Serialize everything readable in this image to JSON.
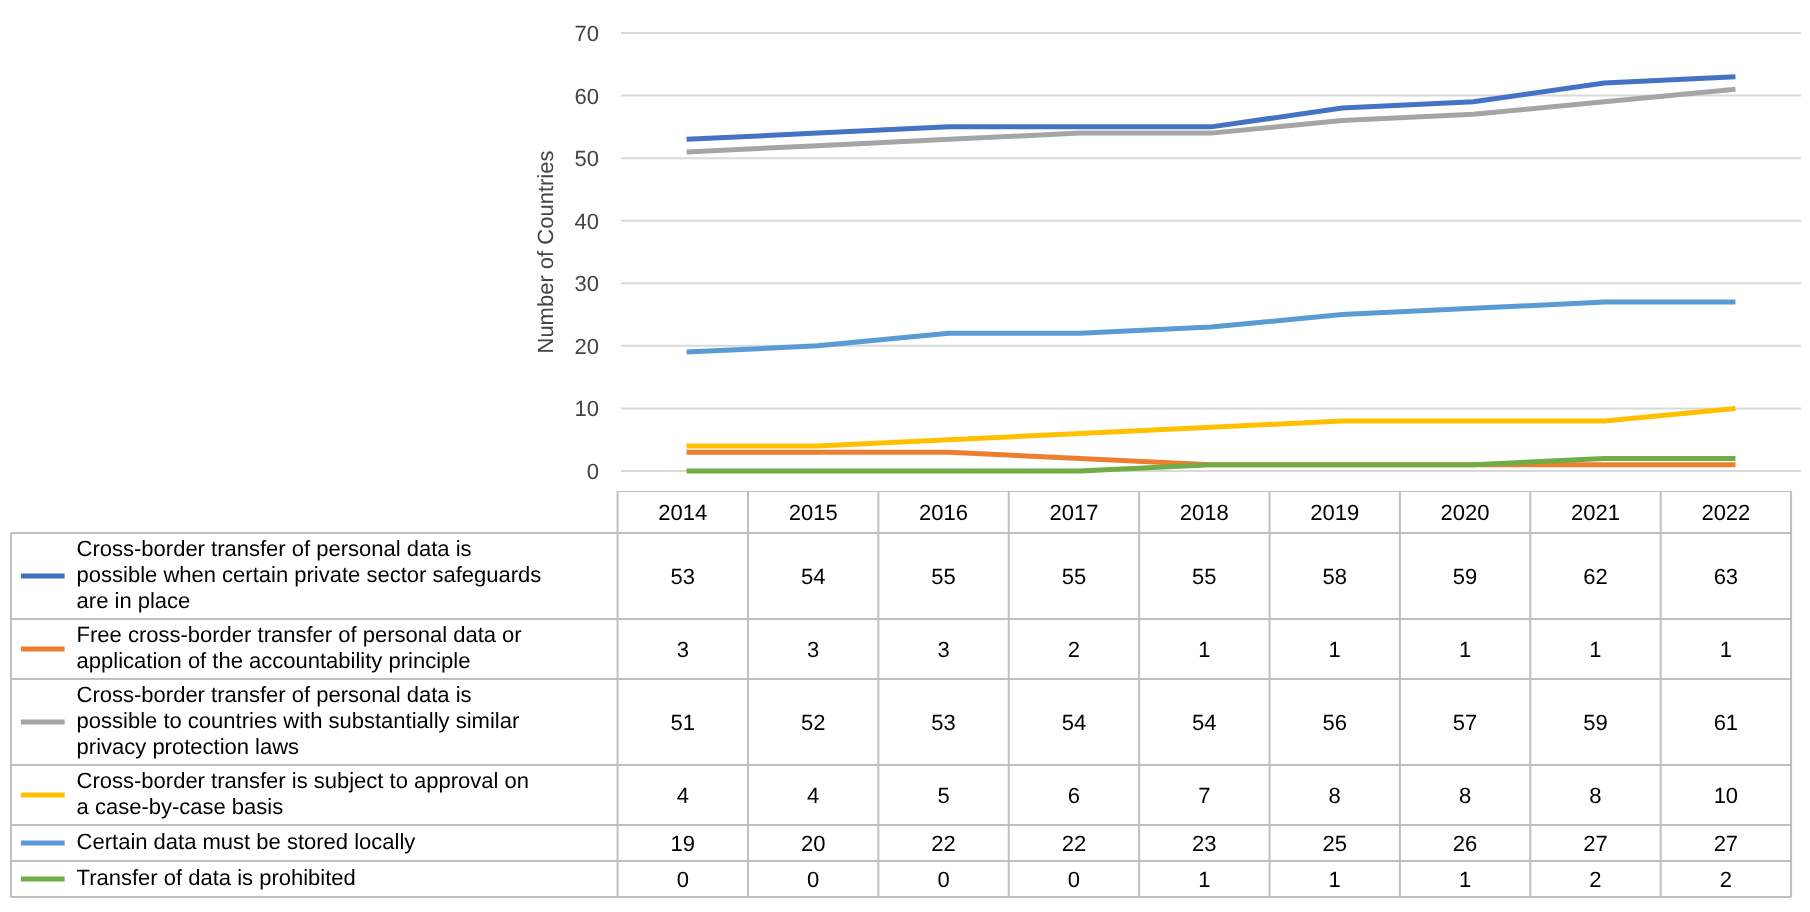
{
  "chart_data": {
    "type": "line",
    "ylabel": "Number of Countries",
    "categories": [
      "2014",
      "2015",
      "2016",
      "2017",
      "2018",
      "2019",
      "2020",
      "2021",
      "2022"
    ],
    "ylim": [
      0,
      70
    ],
    "yticks": [
      0,
      10,
      20,
      30,
      40,
      50,
      60,
      70
    ],
    "grid": "y",
    "legend": "bottom left",
    "data_labels": true,
    "line_style": "solid",
    "marker": "none",
    "series": [
      {
        "name": "Cross-border transfer of personal data is possible when certain private sector safeguards are in place",
        "color": "#4472c4",
        "values": [
          53,
          54,
          55,
          55,
          55,
          58,
          59,
          62,
          63
        ]
      },
      {
        "name": "Free cross-border transfer of personal data or application of the accountability principle",
        "color": "#ed7d31",
        "values": [
          3,
          3,
          3,
          2,
          1,
          1,
          1,
          1,
          1
        ]
      },
      {
        "name": "Cross-border transfer of personal data is possible to countries with substantially similar privacy protection laws",
        "color": "#a5a5a5",
        "values": [
          51,
          52,
          53,
          54,
          54,
          56,
          57,
          59,
          61
        ]
      },
      {
        "name": "Cross-border transfer is subject to approval on a case-by-case basis",
        "color": "#ffc000",
        "values": [
          4,
          4,
          5,
          6,
          7,
          8,
          8,
          8,
          10
        ]
      },
      {
        "name": "Certain data must be stored locally",
        "color": "#5b9bd5",
        "values": [
          19,
          20,
          22,
          22,
          23,
          25,
          26,
          27,
          27
        ]
      },
      {
        "name": "Transfer of data is prohibited",
        "color": "#70ad47",
        "values": [
          0,
          0,
          0,
          0,
          1,
          1,
          1,
          2,
          2
        ]
      }
    ]
  }
}
